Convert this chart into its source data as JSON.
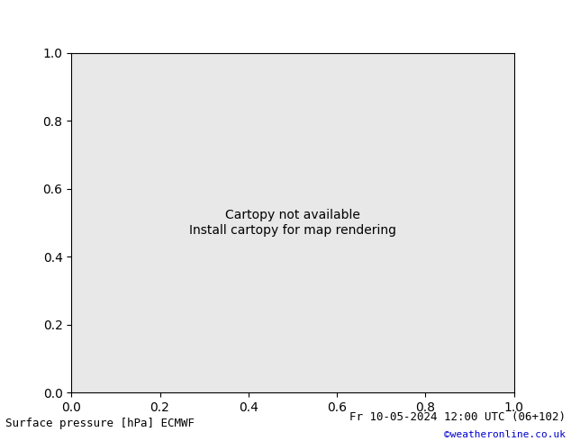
{
  "title_left": "Surface pressure [hPa] ECMWF",
  "title_right": "Fr 10-05-2024 12:00 UTC (06+102)",
  "title_right2": "©weatheronline.co.uk",
  "bg_color": "#ffffff",
  "map_bg": "#e8e8e8",
  "land_color": "#c8e8c0",
  "ocean_color": "#e8e8e8",
  "contour_low_color": "#0000cc",
  "contour_high_color": "#cc0000",
  "contour_base_color": "#000000",
  "pressure_base": 1013,
  "pressure_min": 940,
  "pressure_max": 1050,
  "pressure_interval": 4,
  "font_size_title": 9,
  "font_size_label": 7,
  "label_color_left": "#000000",
  "label_color_right": "#000000",
  "label_color_copy": "#0000cc"
}
